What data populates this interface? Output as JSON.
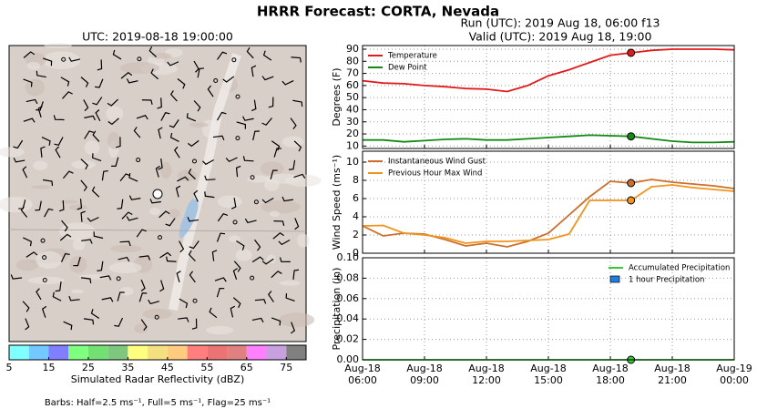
{
  "title": "HRRR Forecast: CORTA, Nevada",
  "run": "Run (UTC): 2019 Aug 18, 06:00 f13",
  "valid": "Valid (UTC): 2019 Aug 18, 19:00",
  "chart_data": [
    {
      "type": "map",
      "title": "UTC: 2019-08-18 19:00:00",
      "colorbar": {
        "label": "Simulated Radar Reflectivity (dBZ)",
        "xlim": [
          5,
          80
        ],
        "bounds": [
          5,
          10,
          15,
          20,
          25,
          30,
          35,
          40,
          45,
          50,
          55,
          60,
          65,
          70,
          75,
          80
        ],
        "colors": [
          "#80ffff",
          "#73c8ff",
          "#7f7fff",
          "#7fff7f",
          "#73e073",
          "#7fc77f",
          "#ffff7f",
          "#f5e07f",
          "#ffcc7f",
          "#ff7f7f",
          "#eb7373",
          "#e08080",
          "#ff80ff",
          "#c8a0e0",
          "#808080"
        ],
        "xticks": [
          5,
          15,
          25,
          35,
          45,
          55,
          65,
          75
        ]
      },
      "note": "Barbs: Half=2.5 ms⁻¹, Full=5 ms⁻¹, Flag=25 ms⁻¹"
    },
    {
      "type": "line",
      "ylabel": "Degrees (F)",
      "legend": "upper left",
      "grid": true,
      "xlim": [
        "2019-08-18 06:00",
        "2019-08-19 00:00"
      ],
      "ylim": [
        8,
        93
      ],
      "yticks": [
        10,
        20,
        30,
        40,
        50,
        60,
        70,
        80,
        90
      ],
      "highlight_x": "2019-08-18 19:00",
      "x": [
        "2019-08-18 06:00",
        "2019-08-18 07:00",
        "2019-08-18 08:00",
        "2019-08-18 09:00",
        "2019-08-18 10:00",
        "2019-08-18 11:00",
        "2019-08-18 12:00",
        "2019-08-18 13:00",
        "2019-08-18 14:00",
        "2019-08-18 15:00",
        "2019-08-18 16:00",
        "2019-08-18 17:00",
        "2019-08-18 18:00",
        "2019-08-18 19:00",
        "2019-08-18 20:00",
        "2019-08-18 21:00",
        "2019-08-18 22:00",
        "2019-08-18 23:00",
        "2019-08-19 00:00"
      ],
      "series": [
        {
          "name": "Temperature",
          "color": "#e31a1c",
          "values": [
            64,
            62,
            61.5,
            60,
            59,
            57.5,
            57,
            55,
            60,
            68,
            73,
            79,
            85,
            87,
            89,
            90,
            90,
            90,
            89.5
          ]
        },
        {
          "name": "Dew Point",
          "color": "#138a13",
          "values": [
            15,
            15,
            13.5,
            14.5,
            15.5,
            16,
            15,
            15,
            16,
            17,
            18,
            19,
            18.5,
            18,
            16,
            14,
            13,
            13,
            13.5
          ]
        }
      ]
    },
    {
      "type": "line",
      "ylabel": "Wind Speed (ms⁻¹)",
      "legend": "upper left",
      "grid": true,
      "xlim": [
        "2019-08-18 06:00",
        "2019-08-19 00:00"
      ],
      "ylim": [
        0,
        11.2
      ],
      "yticks": [
        0,
        2,
        4,
        6,
        8,
        10
      ],
      "highlight_x": "2019-08-18 19:00",
      "x": [
        "2019-08-18 06:00",
        "2019-08-18 07:00",
        "2019-08-18 08:00",
        "2019-08-18 09:00",
        "2019-08-18 10:00",
        "2019-08-18 11:00",
        "2019-08-18 12:00",
        "2019-08-18 13:00",
        "2019-08-18 14:00",
        "2019-08-18 15:00",
        "2019-08-18 16:00",
        "2019-08-18 17:00",
        "2019-08-18 18:00",
        "2019-08-18 19:00",
        "2019-08-18 20:00",
        "2019-08-18 21:00",
        "2019-08-18 22:00",
        "2019-08-18 23:00",
        "2019-08-19 00:00"
      ],
      "series": [
        {
          "name": "Instantaneous Wind Gust",
          "color": "#cd6f2a",
          "values": [
            3,
            1.9,
            2.2,
            2.1,
            1.5,
            0.8,
            1.1,
            0.7,
            1.3,
            2.2,
            4.2,
            6.2,
            7.9,
            7.7,
            8.1,
            7.8,
            7.6,
            7.4,
            7.1
          ]
        },
        {
          "name": "Previous Hour Max Wind",
          "color": "#f0941e",
          "values": [
            3,
            3.05,
            2.2,
            2,
            1.7,
            1.1,
            1.3,
            1.3,
            1.4,
            1.5,
            2.1,
            5.8,
            5.8,
            5.8,
            7.3,
            7.5,
            7.2,
            7,
            6.8
          ]
        }
      ]
    },
    {
      "type": "line",
      "ylabel": "Precipitation (in)",
      "legend": "upper right",
      "grid": true,
      "xlim": [
        "2019-08-18 06:00",
        "2019-08-19 00:00"
      ],
      "ylim": [
        0,
        0.1
      ],
      "yticks": [
        {
          "value": 0,
          "label": "0.00"
        },
        {
          "value": 0.02,
          "label": "0.02"
        },
        {
          "value": 0.04,
          "label": "0.04"
        },
        {
          "value": 0.06,
          "label": "0.06"
        },
        {
          "value": 0.08,
          "label": "0.08"
        },
        {
          "value": 0.1,
          "label": "0.10"
        }
      ],
      "xticks": [
        {
          "value": "2019-08-18 06:00",
          "label": "Aug-18\n06:00"
        },
        {
          "value": "2019-08-18 09:00",
          "label": "Aug-18\n09:00"
        },
        {
          "value": "2019-08-18 12:00",
          "label": "Aug-18\n12:00"
        },
        {
          "value": "2019-08-18 15:00",
          "label": "Aug-18\n15:00"
        },
        {
          "value": "2019-08-18 18:00",
          "label": "Aug-18\n18:00"
        },
        {
          "value": "2019-08-18 21:00",
          "label": "Aug-18\n21:00"
        },
        {
          "value": "2019-08-19 00:00",
          "label": "Aug-19\n00:00"
        }
      ],
      "highlight_x": "2019-08-18 19:00",
      "x": [
        "2019-08-18 06:00",
        "2019-08-18 07:00",
        "2019-08-18 08:00",
        "2019-08-18 09:00",
        "2019-08-18 10:00",
        "2019-08-18 11:00",
        "2019-08-18 12:00",
        "2019-08-18 13:00",
        "2019-08-18 14:00",
        "2019-08-18 15:00",
        "2019-08-18 16:00",
        "2019-08-18 17:00",
        "2019-08-18 18:00",
        "2019-08-18 19:00",
        "2019-08-18 20:00",
        "2019-08-18 21:00",
        "2019-08-18 22:00",
        "2019-08-18 23:00",
        "2019-08-19 00:00"
      ],
      "series": [
        {
          "name": "Accumulated Precipitation",
          "color": "#33cc33",
          "values": [
            0,
            0,
            0,
            0,
            0,
            0,
            0,
            0,
            0,
            0,
            0,
            0,
            0,
            0,
            0,
            0,
            0,
            0,
            0
          ]
        },
        {
          "name": "1 hour Precipitation",
          "type": "bar",
          "color": "#1f7fe0",
          "values": [
            0,
            0,
            0,
            0,
            0,
            0,
            0,
            0,
            0,
            0,
            0,
            0,
            0,
            0,
            0,
            0,
            0,
            0,
            0
          ]
        }
      ]
    }
  ]
}
